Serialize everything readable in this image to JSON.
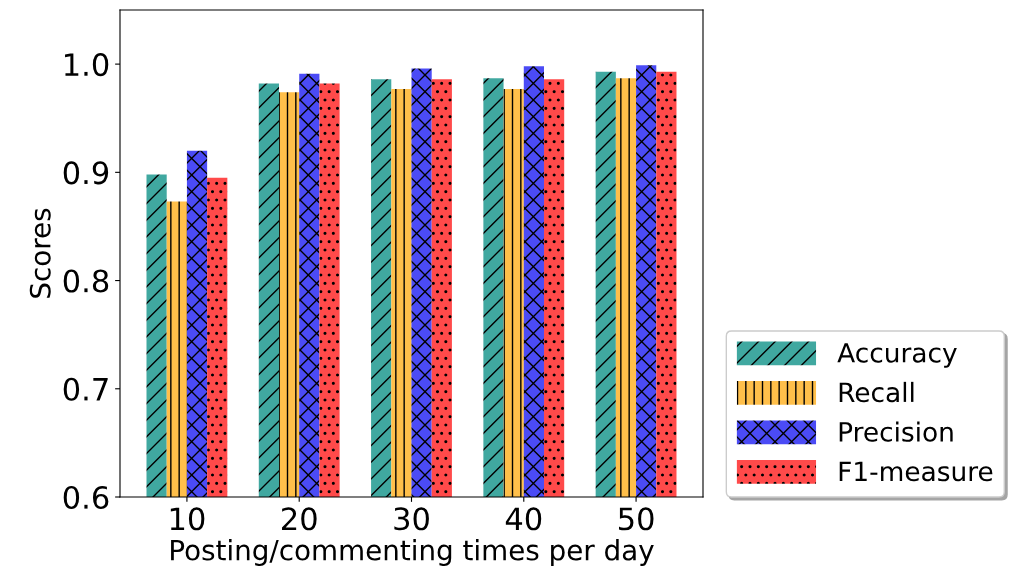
{
  "chart_data": {
    "type": "bar",
    "xlabel": "Posting/commenting times per day",
    "ylabel": "Scores",
    "categories": [
      "10",
      "20",
      "30",
      "40",
      "50"
    ],
    "series": [
      {
        "name": "Accuracy",
        "color": "#40a8a0",
        "values": [
          0.898,
          0.982,
          0.986,
          0.987,
          0.993
        ]
      },
      {
        "name": "Recall",
        "color": "#ffbf4a",
        "values": [
          0.873,
          0.974,
          0.977,
          0.977,
          0.987
        ]
      },
      {
        "name": "Precision",
        "color": "#4b4bf5",
        "values": [
          0.92,
          0.991,
          0.996,
          0.998,
          0.999
        ]
      },
      {
        "name": "F1-measure",
        "color": "#ff4a4a",
        "values": [
          0.895,
          0.982,
          0.986,
          0.986,
          0.993
        ]
      }
    ],
    "ylim": [
      0.6,
      1.05
    ],
    "yticks": [
      0.6,
      0.7,
      0.8,
      0.9,
      {
        "value": 1.0,
        "label": "1.0"
      }
    ],
    "legend": "right",
    "grid": false
  }
}
